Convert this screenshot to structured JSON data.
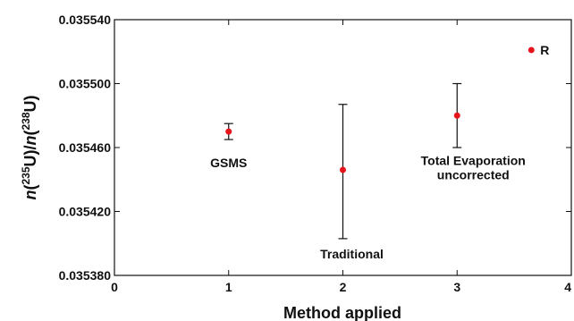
{
  "chart_data": {
    "type": "scatter",
    "title": "",
    "xlabel": "Method applied",
    "ylabel": "n(235U)/n(238U)",
    "ylabel_parts": {
      "n1": "n",
      "iso1": "235",
      "el1": "U",
      "slash": ")/",
      "n2": "n",
      "iso2": "238",
      "el2": "U"
    },
    "xlim": [
      0,
      4
    ],
    "ylim": [
      0.03538,
      0.03554
    ],
    "x_ticks": [
      "0",
      "1",
      "2",
      "3",
      "4"
    ],
    "y_ticks": [
      "0.035380",
      "0.035420",
      "0.035460",
      "0.035500",
      "0.035540"
    ],
    "grid": false,
    "marker_color": "#e8141c",
    "points": [
      {
        "x": 1,
        "y": 0.03547,
        "err_low": 0.035465,
        "err_high": 0.035475,
        "label": "GSMS",
        "label_lines": [
          "GSMS"
        ]
      },
      {
        "x": 2,
        "y": 0.035446,
        "err_low": 0.035403,
        "err_high": 0.035487,
        "label": "Traditional",
        "label_lines": [
          "Traditional"
        ]
      },
      {
        "x": 3,
        "y": 0.03548,
        "err_low": 0.03546,
        "err_high": 0.0355,
        "label": "Total Evaporation uncorrected",
        "label_lines": [
          "Total Evaporation",
          "uncorrected"
        ]
      },
      {
        "x": 3.65,
        "y": 0.035521,
        "err_low": null,
        "err_high": null,
        "label": "R",
        "label_lines": [
          "R"
        ]
      }
    ]
  }
}
